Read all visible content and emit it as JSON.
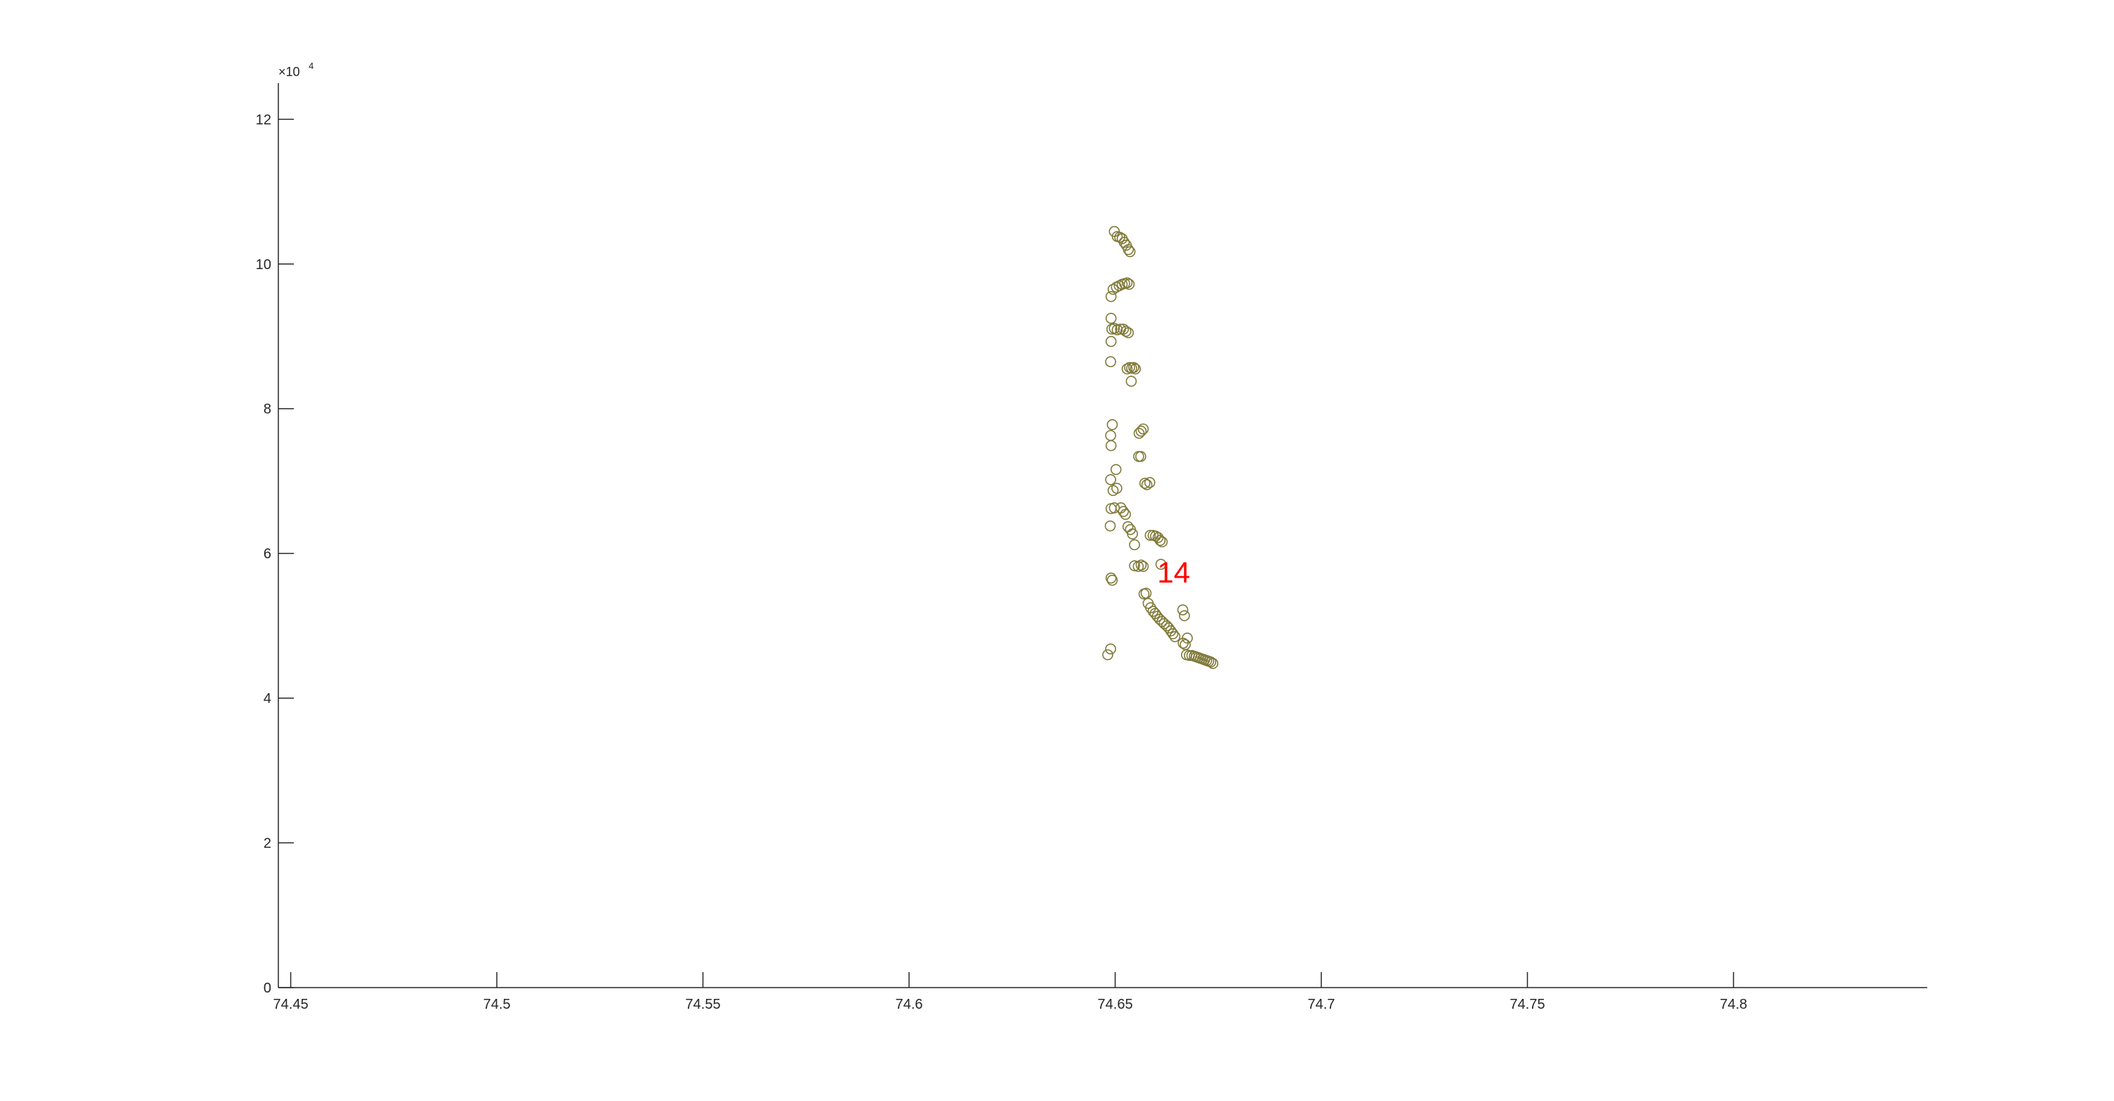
{
  "chart_data": {
    "type": "scatter",
    "title": "",
    "xlabel": "",
    "ylabel": "",
    "xlim": [
      74.447,
      74.847
    ],
    "ylim": [
      0,
      125000
    ],
    "y_exponent_label": "×10",
    "y_exponent_power": "4",
    "x_ticks": [
      {
        "value": 74.45,
        "label": "74.45"
      },
      {
        "value": 74.5,
        "label": "74.5"
      },
      {
        "value": 74.55,
        "label": "74.55"
      },
      {
        "value": 74.6,
        "label": "74.6"
      },
      {
        "value": 74.65,
        "label": "74.65"
      },
      {
        "value": 74.7,
        "label": "74.7"
      },
      {
        "value": 74.75,
        "label": "74.75"
      },
      {
        "value": 74.8,
        "label": "74.8"
      }
    ],
    "y_ticks": [
      {
        "value": 0,
        "label": "0"
      },
      {
        "value": 20000,
        "label": "2"
      },
      {
        "value": 40000,
        "label": "4"
      },
      {
        "value": 60000,
        "label": "6"
      },
      {
        "value": 80000,
        "label": "8"
      },
      {
        "value": 100000,
        "label": "10"
      },
      {
        "value": 120000,
        "label": "12"
      }
    ],
    "grid": false,
    "marker_color": "#807a3a",
    "annotation": {
      "text": "14",
      "x": 74.6602,
      "y": 56000,
      "color": "#ff0000"
    },
    "series": [
      {
        "x": [
          74.6498,
          74.6505,
          74.6511,
          74.6517,
          74.6522,
          74.6527,
          74.6532,
          74.6536,
          74.649,
          74.6495,
          74.6503,
          74.651,
          74.6517,
          74.6523,
          74.6529,
          74.6534,
          74.649,
          74.6492,
          74.649,
          74.6498,
          74.6505,
          74.6513,
          74.652,
          74.6526,
          74.6532,
          74.6489,
          74.6529,
          74.6535,
          74.654,
          74.6545,
          74.6549,
          74.6539,
          74.6493,
          74.6489,
          74.649,
          74.6558,
          74.6563,
          74.6568,
          74.6557,
          74.6562,
          74.6502,
          74.6489,
          74.6572,
          74.6577,
          74.6584,
          74.6495,
          74.6504,
          74.649,
          74.6498,
          74.6514,
          74.652,
          74.6525,
          74.6488,
          74.6531,
          74.6537,
          74.6542,
          74.6547,
          74.6585,
          74.6592,
          74.6598,
          74.6604,
          74.6609,
          74.6614,
          74.6547,
          74.6556,
          74.6563,
          74.6568,
          74.6611,
          74.649,
          74.6493,
          74.657,
          74.6575,
          74.658,
          74.6586,
          74.6592,
          74.6597,
          74.6602,
          74.6608,
          74.6614,
          74.6619,
          74.6625,
          74.663,
          74.6635,
          74.664,
          74.6645,
          74.6664,
          74.6668,
          74.6675,
          74.6665,
          74.667,
          74.6673,
          74.668,
          74.6686,
          74.6692,
          74.6697,
          74.6702,
          74.6707,
          74.6712,
          74.6717,
          74.6722,
          74.6727,
          74.6732,
          74.6737,
          74.6489,
          74.6482
        ],
        "y": [
          104500,
          103800,
          103700,
          103500,
          103000,
          102600,
          102000,
          101700,
          95500,
          96500,
          96800,
          97000,
          97200,
          97300,
          97400,
          97200,
          92500,
          91000,
          89300,
          91100,
          90900,
          91000,
          91000,
          90700,
          90500,
          86500,
          85500,
          85700,
          85600,
          85700,
          85500,
          83800,
          77800,
          76300,
          74900,
          76600,
          76900,
          77200,
          73400,
          73400,
          71600,
          70200,
          69700,
          69500,
          69800,
          68700,
          69000,
          66200,
          66300,
          66300,
          65800,
          65400,
          63800,
          63700,
          63300,
          62700,
          61200,
          62500,
          62500,
          62400,
          62200,
          61800,
          61600,
          58300,
          58200,
          58400,
          58200,
          58500,
          56600,
          56300,
          54400,
          54500,
          53100,
          52500,
          52000,
          51700,
          51300,
          50900,
          50600,
          50300,
          50000,
          49700,
          49300,
          48900,
          48500,
          52200,
          51400,
          48300,
          47600,
          47400,
          46000,
          45900,
          45900,
          45800,
          45700,
          45600,
          45500,
          45400,
          45300,
          45200,
          45100,
          45000,
          44800,
          46800,
          46000
        ]
      }
    ]
  }
}
